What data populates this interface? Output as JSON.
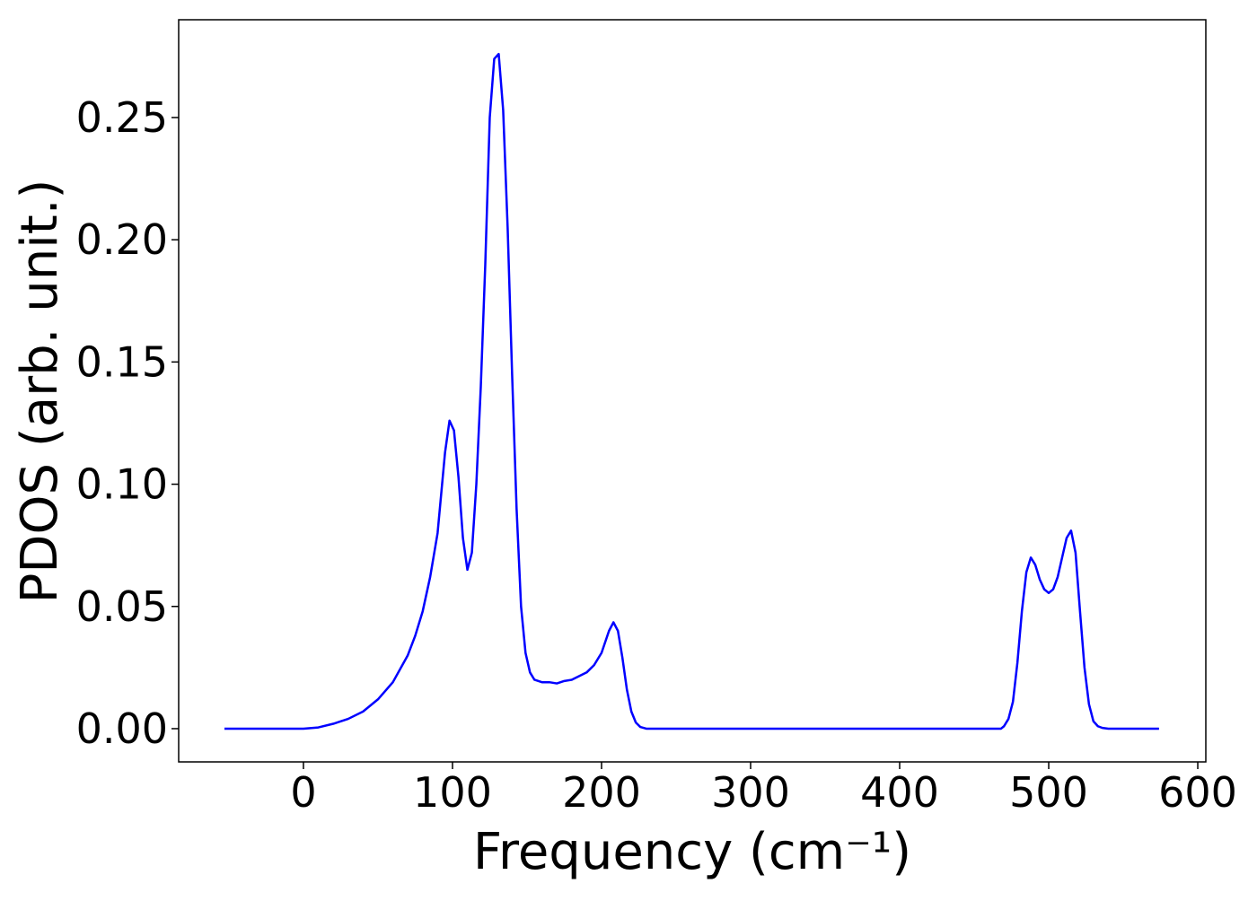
{
  "chart_data": {
    "type": "line",
    "x_label": "Frequency (cm⁻¹)",
    "y_label": "PDOS (arb. unit.)",
    "color": "#0000ff",
    "x": [
      -53,
      0,
      10,
      20,
      30,
      40,
      50,
      60,
      70,
      75,
      80,
      85,
      90,
      95,
      98,
      101,
      104,
      107,
      110,
      113,
      116,
      119,
      122,
      125,
      128,
      131,
      134,
      137,
      140,
      143,
      146,
      149,
      152,
      155,
      160,
      165,
      170,
      175,
      180,
      185,
      190,
      195,
      200,
      205,
      208,
      211,
      214,
      217,
      220,
      223,
      226,
      230,
      468,
      470,
      473,
      476,
      479,
      482,
      485,
      488,
      491,
      494,
      497,
      500,
      503,
      506,
      509,
      512,
      515,
      518,
      521,
      524,
      527,
      530,
      533,
      536,
      540,
      574
    ],
    "values": [
      0,
      0,
      0.0005,
      0.002,
      0.004,
      0.007,
      0.012,
      0.019,
      0.03,
      0.038,
      0.048,
      0.062,
      0.08,
      0.113,
      0.126,
      0.122,
      0.103,
      0.078,
      0.065,
      0.072,
      0.1,
      0.14,
      0.19,
      0.25,
      0.274,
      0.276,
      0.253,
      0.205,
      0.145,
      0.09,
      0.05,
      0.031,
      0.023,
      0.02,
      0.019,
      0.019,
      0.0185,
      0.0195,
      0.02,
      0.0215,
      0.023,
      0.026,
      0.031,
      0.04,
      0.0435,
      0.04,
      0.029,
      0.016,
      0.007,
      0.0025,
      0.0007,
      0,
      0,
      0.001,
      0.004,
      0.011,
      0.027,
      0.048,
      0.064,
      0.07,
      0.067,
      0.061,
      0.057,
      0.0555,
      0.057,
      0.062,
      0.07,
      0.078,
      0.081,
      0.072,
      0.048,
      0.025,
      0.01,
      0.003,
      0.001,
      0.0003,
      0,
      0
    ],
    "xlim": [
      -83.7,
      605.4
    ],
    "ylim": [
      -0.0136,
      0.29
    ],
    "xticks": [
      0,
      100,
      200,
      300,
      400,
      500,
      600
    ],
    "yticks": [
      {
        "value": 0,
        "label": "0.00"
      },
      0.05,
      {
        "value": 0.1,
        "label": "0.10"
      },
      0.15,
      {
        "value": 0.2,
        "label": "0.20"
      },
      0.25
    ]
  }
}
